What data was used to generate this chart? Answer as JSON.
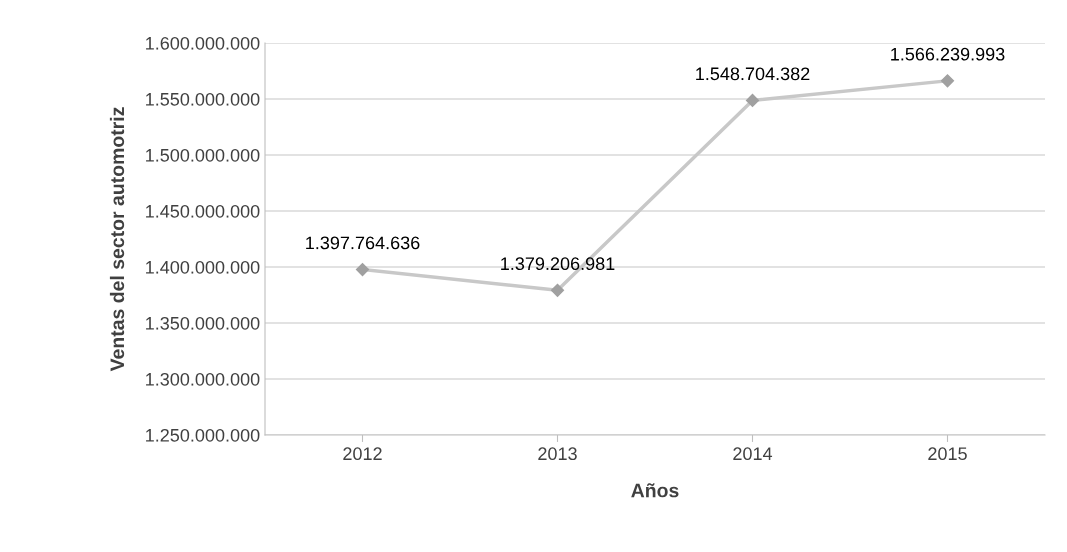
{
  "chart_data": {
    "type": "line",
    "xlabel": "Años",
    "ylabel": "Ventas del sector automotriz",
    "categories": [
      "2012",
      "2013",
      "2014",
      "2015"
    ],
    "series": [
      {
        "color": "#c8c8c8",
        "values": [
          1397764636,
          1379206981,
          1548704382,
          1566239993
        ],
        "value_labels": [
          "1.397.764.636",
          "1.379.206.981",
          "1.548.704.382",
          "1.566.239.993"
        ]
      }
    ],
    "ylim": [
      1250000000,
      1600000000
    ],
    "yticks": [
      {
        "value": 1250000000,
        "label": "1.250.000.000"
      },
      {
        "value": 1300000000,
        "label": "1.300.000.000"
      },
      {
        "value": 1350000000,
        "label": "1.350.000.000"
      },
      {
        "value": 1400000000,
        "label": "1.400.000.000"
      },
      {
        "value": 1450000000,
        "label": "1.450.000.000"
      },
      {
        "value": 1500000000,
        "label": "1.500.000.000"
      },
      {
        "value": 1550000000,
        "label": "1.550.000.000"
      },
      {
        "value": 1600000000,
        "label": "1.600.000.000"
      }
    ],
    "grid": "y",
    "marker": "diamond",
    "line_style": "solid",
    "legend": false
  }
}
